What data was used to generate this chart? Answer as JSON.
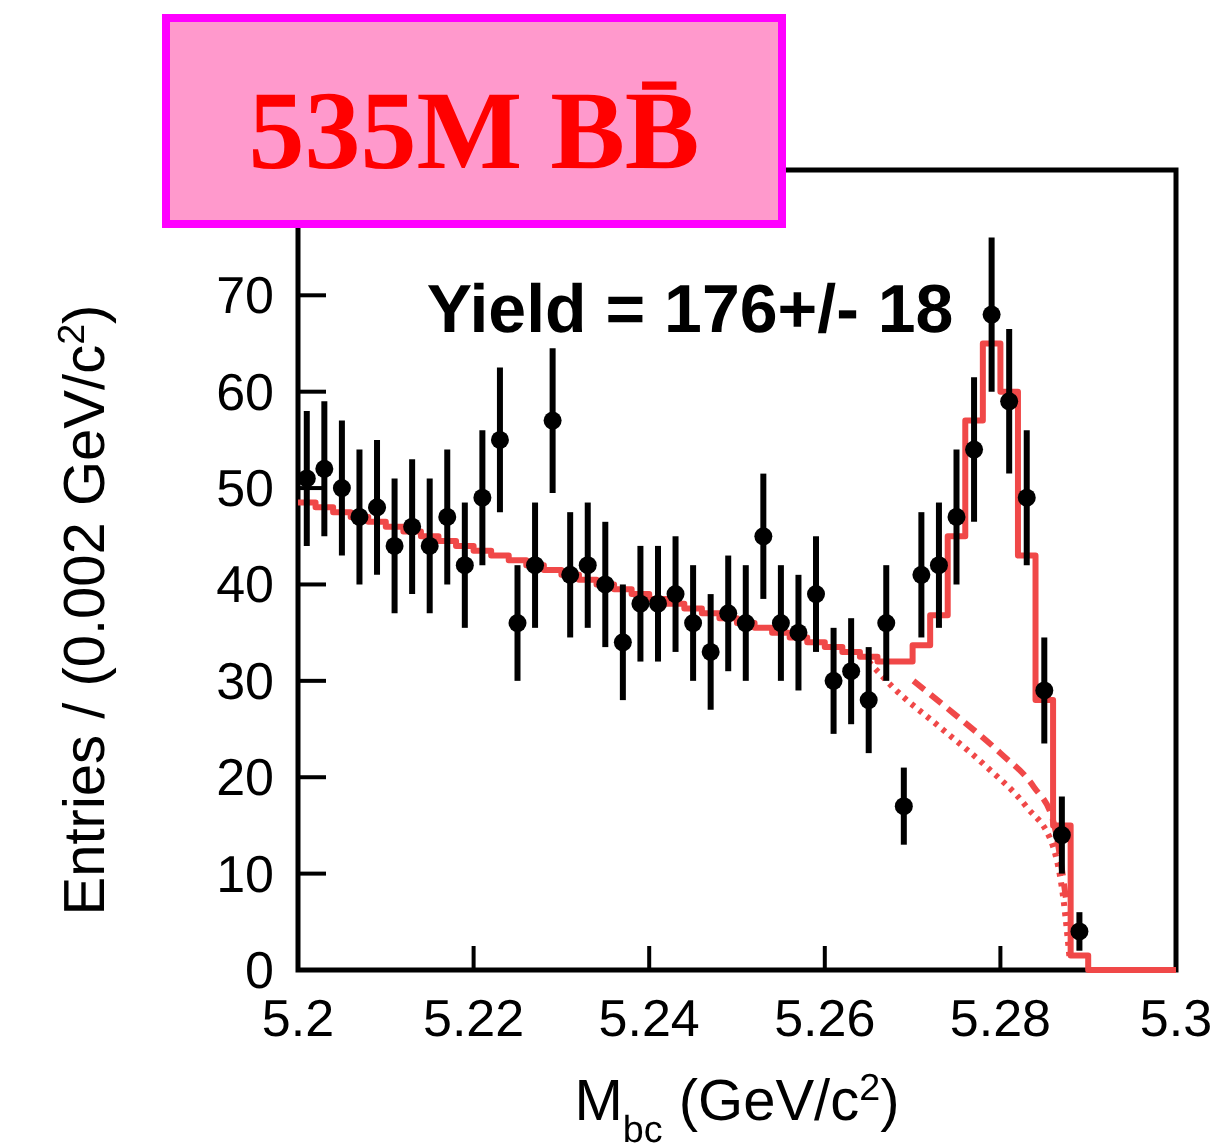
{
  "chart_data": {
    "type": "scatter",
    "title": "535M BB̄",
    "xlabel": "M$_{bc}$ (GeV/c$^{2}$)",
    "ylabel": "Entries / (0.002 GeV/c$^{2}$)",
    "annotations": [
      "Yield = 176+/- 18"
    ],
    "xlim": [
      5.2,
      5.3
    ],
    "xticks": [
      5.2,
      5.22,
      5.24,
      5.26,
      5.28,
      5.3
    ],
    "ylim": [
      0,
      83
    ],
    "yticks": [
      0,
      10,
      20,
      30,
      40,
      50,
      60,
      70
    ],
    "grid": false,
    "series": [
      {
        "type": "step",
        "marker": "none",
        "color": "#f04848",
        "line_style": "solid",
        "x": [
          5.2,
          5.202,
          5.204,
          5.206,
          5.208,
          5.21,
          5.212,
          5.214,
          5.216,
          5.218,
          5.22,
          5.222,
          5.224,
          5.226,
          5.228,
          5.23,
          5.232,
          5.234,
          5.236,
          5.238,
          5.24,
          5.242,
          5.244,
          5.246,
          5.248,
          5.25,
          5.252,
          5.254,
          5.256,
          5.258,
          5.26,
          5.262,
          5.264,
          5.266,
          5.268,
          5.27,
          5.272,
          5.274,
          5.276,
          5.278,
          5.28,
          5.282,
          5.284,
          5.286,
          5.288,
          5.29,
          5.292,
          5.294,
          5.296,
          5.298,
          5.3
        ],
        "values": [
          48.5,
          48,
          47.5,
          47,
          46.5,
          46,
          45.5,
          45,
          44.5,
          44,
          43.5,
          43,
          42.5,
          42,
          41.5,
          41,
          40.5,
          40,
          39.5,
          39,
          38.5,
          38,
          37.5,
          37,
          36.5,
          36,
          35.5,
          35,
          34.5,
          34,
          33.5,
          33,
          32.5,
          32,
          32,
          33.7,
          36.8,
          45,
          57,
          65,
          60,
          43,
          28,
          15,
          1.5,
          0,
          0,
          0,
          0,
          0,
          0
        ]
      },
      {
        "type": "line",
        "marker": "none",
        "color": "#f04848",
        "line_style": "dashed",
        "x": [
          5.2701,
          5.2747,
          5.28,
          5.2838,
          5.286,
          5.2875
        ],
        "values": [
          30,
          26.6,
          22.5,
          19,
          15.5,
          7.2
        ]
      },
      {
        "type": "line",
        "marker": "none",
        "color": "#f04848",
        "line_style": "dotted",
        "x": [
          5.265,
          5.2678,
          5.2731,
          5.2784,
          5.283,
          5.286,
          5.2872,
          5.2879
        ],
        "values": [
          32,
          29.3,
          25.2,
          21.1,
          16.9,
          12.8,
          7.2,
          1
        ]
      },
      {
        "marker": "circle",
        "color": "#000000",
        "x": [
          5.201,
          5.203,
          5.205,
          5.207,
          5.209,
          5.211,
          5.213,
          5.215,
          5.217,
          5.219,
          5.221,
          5.223,
          5.225,
          5.227,
          5.229,
          5.231,
          5.233,
          5.235,
          5.237,
          5.239,
          5.241,
          5.243,
          5.245,
          5.247,
          5.249,
          5.251,
          5.253,
          5.255,
          5.257,
          5.259,
          5.261,
          5.263,
          5.265,
          5.267,
          5.269,
          5.271,
          5.273,
          5.275,
          5.277,
          5.279,
          5.281,
          5.283,
          5.285,
          5.287,
          5.289
        ],
        "values": [
          51,
          52,
          50,
          47,
          48,
          44,
          46,
          44,
          47,
          42,
          49,
          55,
          36,
          42,
          57,
          41,
          42,
          40,
          34,
          38,
          38,
          39,
          36,
          33,
          37,
          36,
          45,
          36,
          35,
          39,
          30,
          31,
          28,
          36,
          17,
          41,
          42,
          47,
          54,
          68,
          59,
          49,
          29,
          14,
          4
        ],
        "errors": [
          7,
          7,
          7,
          7,
          7,
          7,
          7,
          7,
          7,
          6.5,
          7,
          7.5,
          6,
          6.5,
          7.5,
          6.5,
          6.5,
          6.5,
          6,
          6,
          6,
          6,
          6,
          6,
          6,
          6,
          6.5,
          6,
          6,
          6,
          5.5,
          5.5,
          5.5,
          6,
          4,
          6.5,
          6.5,
          7,
          7.5,
          8,
          7.5,
          7,
          5.5,
          4,
          2
        ]
      }
    ]
  }
}
